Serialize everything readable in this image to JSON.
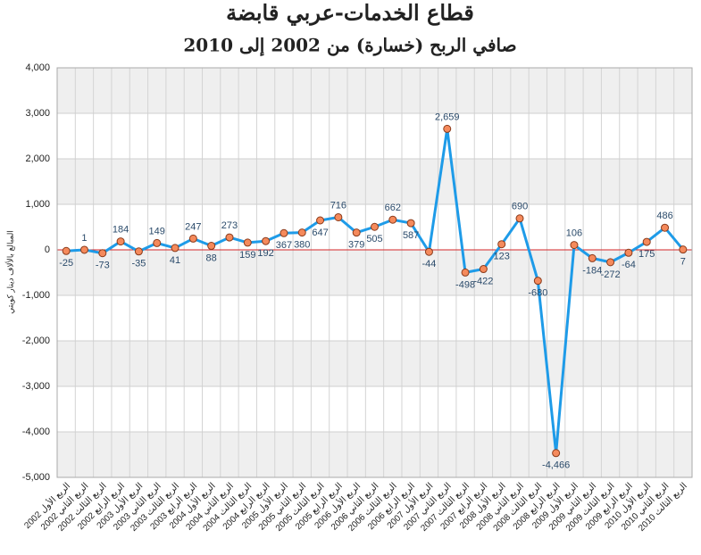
{
  "chart_data": {
    "type": "line",
    "title": "قطاع الخدمات-عربي قابضة",
    "subtitle": "صافي الربح (خسارة) من 2002 إلى 2010",
    "y_label": "المبالغ بالألاف دينار كويتي",
    "categories": [
      "الربع الأول 2002",
      "الربع الثاني 2002",
      "الربع الثالث 2002",
      "الربع الرابع 2002",
      "الربع الأول 2003",
      "الربع الثاني 2003",
      "الربع الثالث 2003",
      "الربع الرابع 2003",
      "الربع الأول 2004",
      "الربع الثاني 2004",
      "الربع الثالث 2004",
      "الربع الرابع 2004",
      "الربع الأول 2005",
      "الربع الثاني 2005",
      "الربع الثالث 2005",
      "الربع الرابع 2005",
      "الربع الأول 2006",
      "الربع الثاني 2006",
      "الربع الثالث 2006",
      "الربع الرابع 2006",
      "الربع الأول 2007",
      "الربع الثاني 2007",
      "الربع الثالث 2007",
      "الربع الرابع 2007",
      "الربع الأول 2008",
      "الربع الثاني 2008",
      "الربع الثالث 2008",
      "الربع الرابع 2008",
      "الربع الأول 2009",
      "الربع الثاني 2009",
      "الربع الثالث 2009",
      "الربع الرابع 2009",
      "الربع الأول 2010",
      "الربع الثاني 2010",
      "الربع الثالث 2010"
    ],
    "series": [
      {
        "color": "#1e9be8",
        "marker_color": "#f58a5c",
        "values": [
          -25,
          1,
          -73,
          184,
          -35,
          149,
          41,
          247,
          88,
          273,
          159,
          192,
          367,
          380,
          647,
          716,
          379,
          505,
          662,
          587,
          -44,
          2659,
          -498,
          -422,
          123,
          690,
          -680,
          -4466,
          106,
          -184,
          -272,
          -64,
          175,
          486,
          7
        ],
        "value_labels": [
          "-25",
          "1",
          "-73",
          "184",
          "-35",
          "149",
          "41",
          "247",
          "88",
          "273",
          "159",
          "192",
          "367",
          "380",
          "647",
          "716",
          "379",
          "505",
          "662",
          "587",
          "-44",
          "2,659",
          "-498",
          "-422",
          "123",
          "690",
          "-680",
          "-4,466",
          "106",
          "-184",
          "-272",
          "-64",
          "175",
          "486",
          "7"
        ]
      }
    ],
    "ylim": [
      -5000,
      4000
    ],
    "yticks": [
      {
        "value": -5000,
        "label": "-5,000"
      },
      {
        "value": -4000,
        "label": "-4,000"
      },
      {
        "value": -3000,
        "label": "-3,000"
      },
      {
        "value": -2000,
        "label": "-2,000"
      },
      {
        "value": -1000,
        "label": "-1,000"
      },
      0,
      {
        "value": 1000,
        "label": "1,000"
      },
      {
        "value": 2000,
        "label": "2,000"
      },
      {
        "value": 3000,
        "label": "3,000"
      },
      {
        "value": 4000,
        "label": "4,000"
      }
    ],
    "grid": true,
    "zero_line_color": "#d62728"
  }
}
